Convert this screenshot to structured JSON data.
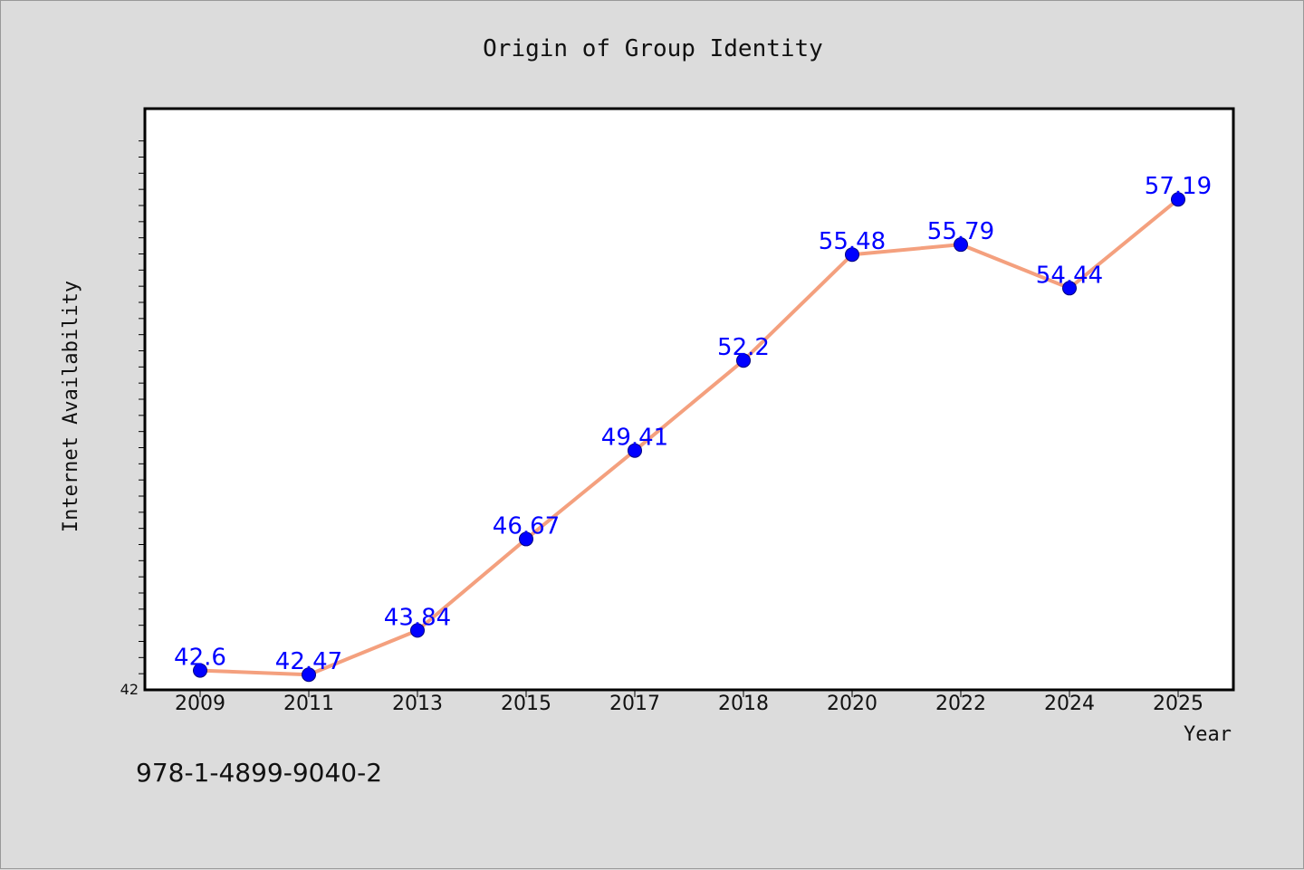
{
  "chart_data": {
    "type": "line",
    "title": "Origin of Group Identity",
    "xlabel": "Year",
    "ylabel": "Internet Availability",
    "categories": [
      "2009",
      "2011",
      "2013",
      "2015",
      "2017",
      "2018",
      "2020",
      "2022",
      "2024",
      "2025"
    ],
    "series": [
      {
        "values": [
          42.6,
          42.47,
          43.84,
          46.67,
          49.41,
          52.2,
          55.48,
          55.79,
          54.44,
          57.19
        ],
        "data_labels": [
          "42.6",
          "42.47",
          "43.84",
          "46.67",
          "49.41",
          "52.2",
          "55.48",
          "55.79",
          "54.44",
          "57.19"
        ]
      }
    ],
    "ylim": [
      42,
      60
    ],
    "y_min_label": "42",
    "grid": false,
    "legend": "none",
    "colors": {
      "line": "#f4a07e",
      "marker": "#0000ff",
      "data_label": "#0000ff",
      "background": "#dcdcdc",
      "plot_area": "#ffffff"
    }
  },
  "footer": {
    "isbn": "978-1-4899-9040-2"
  }
}
